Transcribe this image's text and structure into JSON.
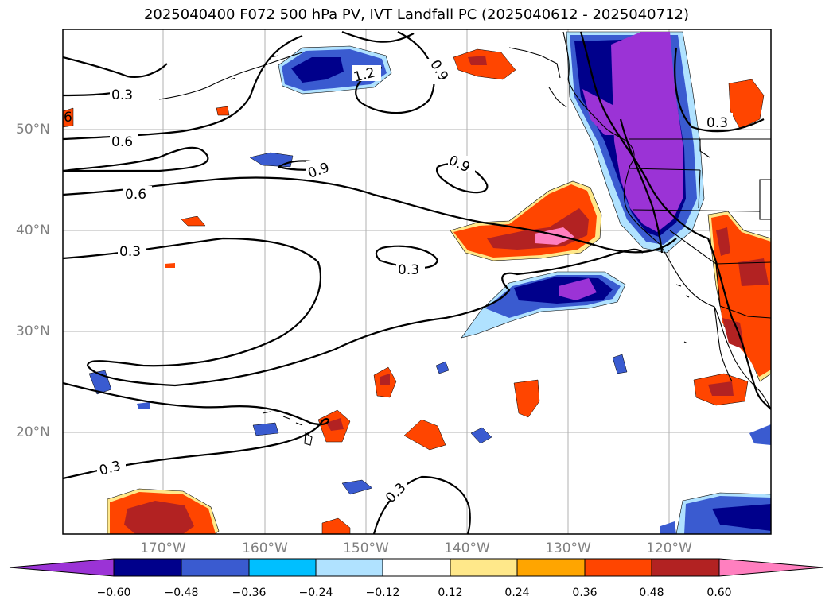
{
  "title": "2025040400 F072 500 hPa PV, IVT Landfall PC (2025040612 - 2025040712)",
  "lat_labels": [
    "50°N",
    "40°N",
    "30°N",
    "20°N"
  ],
  "lon_labels": [
    "170°W",
    "160°W",
    "150°W",
    "140°W",
    "130°W",
    "120°W"
  ],
  "contour_labels": [
    "0.3",
    "1.2",
    "0.9",
    "0.3",
    "0.6",
    "0.9",
    "0.9",
    "0.6",
    "0.9",
    "0.3",
    "0.3",
    "0.3",
    "0.3"
  ],
  "colorbar": {
    "ticks": [
      "−0.60",
      "−0.48",
      "−0.36",
      "−0.24",
      "−0.12",
      "0.12",
      "0.24",
      "0.36",
      "0.48",
      "0.60"
    ],
    "colors": [
      "#9b33d6",
      "#00008b",
      "#3a5bd0",
      "#00bfff",
      "#b0e2ff",
      "#ffffff",
      "#ffe88a",
      "#ffa500",
      "#ff4500",
      "#b22222",
      "#ff7fbf"
    ]
  },
  "fill_colors": {
    "purple": "#9b33d6",
    "navy": "#00008b",
    "royal": "#3a5bd0",
    "cyan": "#00bfff",
    "lightblue": "#b0e2ff",
    "yellow": "#ffe88a",
    "orange": "#ffa500",
    "redorange": "#ff4500",
    "firebrick": "#b22222",
    "pink": "#ff7fbf"
  }
}
